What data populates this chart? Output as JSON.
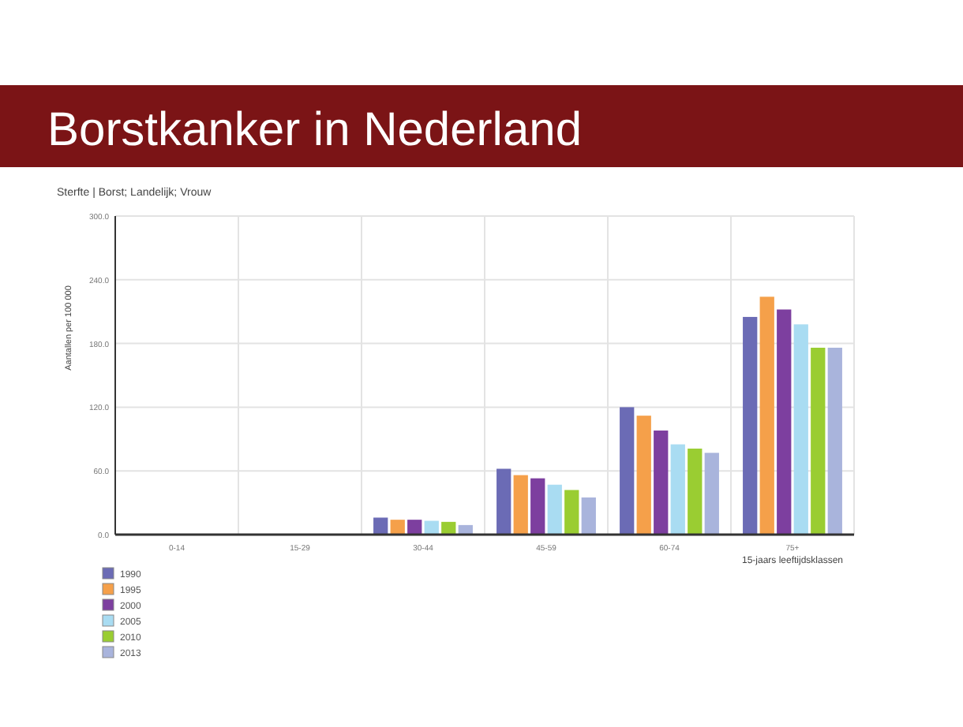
{
  "chart_data": {
    "type": "bar",
    "title": "Borstkanker in Nederland",
    "subtitle": "Sterfte | Borst; Landelijk; Vrouw",
    "xlabel": "15-jaars leeftijdsklassen",
    "ylabel": "Aantallen per 100 000",
    "categories": [
      "0-14",
      "15-29",
      "30-44",
      "45-59",
      "60-74",
      "75+"
    ],
    "series": [
      {
        "name": "1990",
        "color": "#6b6bb5",
        "values": [
          0,
          0,
          16,
          62,
          120,
          205
        ]
      },
      {
        "name": "1995",
        "color": "#f5a04a",
        "values": [
          0,
          0,
          14,
          56,
          112,
          224
        ]
      },
      {
        "name": "2000",
        "color": "#7d3f9f",
        "values": [
          0,
          0,
          14,
          53,
          98,
          212
        ]
      },
      {
        "name": "2005",
        "color": "#a9dcf2",
        "values": [
          0,
          0,
          13,
          47,
          85,
          198
        ]
      },
      {
        "name": "2010",
        "color": "#9acd32",
        "values": [
          0,
          0,
          12,
          42,
          81,
          176
        ]
      },
      {
        "name": "2013",
        "color": "#a9b4dc",
        "values": [
          0,
          0,
          9,
          35,
          77,
          176
        ]
      }
    ],
    "ylim": [
      0,
      300
    ],
    "yticks": [
      {
        "value": 0,
        "label": "0.0"
      },
      {
        "value": 60,
        "label": "60.0"
      },
      {
        "value": 120,
        "label": "120.0"
      },
      {
        "value": 180,
        "label": "180.0"
      },
      {
        "value": 240,
        "label": "240.0"
      },
      {
        "value": 300,
        "label": "300.0"
      }
    ],
    "grid": true,
    "legend": "bottom left"
  }
}
